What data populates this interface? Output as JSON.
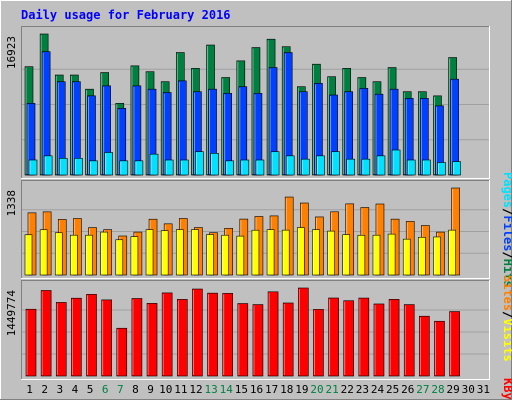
{
  "title": "Daily usage for February 2016",
  "colors": {
    "hits": "#008040",
    "files": "#0040FF",
    "pages": "#00E0FF",
    "visits": "#FFFF00",
    "sites": "#FF8000",
    "kbytes": "#FF0000",
    "weekend_label": "#008040",
    "title": "#0000FF",
    "background": "#C0C0C0"
  },
  "chart_data": [
    {
      "type": "bar",
      "name": "hits-files-pages",
      "categories": [
        "1",
        "2",
        "3",
        "4",
        "5",
        "6",
        "7",
        "8",
        "9",
        "10",
        "11",
        "12",
        "13",
        "14",
        "15",
        "16",
        "17",
        "18",
        "19",
        "20",
        "21",
        "22",
        "23",
        "24",
        "25",
        "26",
        "27",
        "28",
        "29",
        "30",
        "31"
      ],
      "weekend_days": [
        "6",
        "7",
        "13",
        "14",
        "20",
        "21",
        "27",
        "28"
      ],
      "ymax_label": "16923",
      "ylim": [
        0,
        16923
      ],
      "series": [
        {
          "name": "Hits",
          "values": [
            13000,
            16923,
            12000,
            12000,
            10300,
            12300,
            8600,
            13100,
            12400,
            11200,
            14700,
            12800,
            15600,
            11700,
            13700,
            15300,
            16300,
            15400,
            10600,
            13300,
            11800,
            12800,
            11700,
            11200,
            12900,
            10000,
            10000,
            9500,
            14100,
            0,
            0
          ]
        },
        {
          "name": "Files",
          "values": [
            8600,
            14800,
            11200,
            11200,
            9500,
            10700,
            8000,
            10700,
            10300,
            9900,
            11300,
            10000,
            10300,
            9800,
            10600,
            9800,
            12900,
            14700,
            10000,
            11000,
            9600,
            10000,
            10400,
            9700,
            10300,
            9200,
            9200,
            8300,
            11500,
            0,
            0
          ]
        },
        {
          "name": "Pages",
          "values": [
            1800,
            2300,
            2000,
            2000,
            1700,
            2700,
            1700,
            1700,
            2500,
            1800,
            1800,
            2800,
            2600,
            1700,
            1800,
            1800,
            2800,
            2300,
            1900,
            2300,
            2800,
            1900,
            1900,
            2300,
            3000,
            1800,
            1800,
            1500,
            1600,
            0,
            0
          ]
        }
      ]
    },
    {
      "type": "bar",
      "name": "sites-visits",
      "categories": [
        "1",
        "2",
        "3",
        "4",
        "5",
        "6",
        "7",
        "8",
        "9",
        "10",
        "11",
        "12",
        "13",
        "14",
        "15",
        "16",
        "17",
        "18",
        "19",
        "20",
        "21",
        "22",
        "23",
        "24",
        "25",
        "26",
        "27",
        "28",
        "29",
        "30",
        "31"
      ],
      "ymax_label": "1338",
      "ylim": [
        0,
        1338
      ],
      "series": [
        {
          "name": "Sites",
          "values": [
            956,
            971,
            855,
            869,
            729,
            698,
            600,
            660,
            858,
            787,
            869,
            730,
            651,
            718,
            860,
            900,
            909,
            1199,
            1107,
            893,
            972,
            1094,
            1038,
            1092,
            859,
            824,
            761,
            660,
            1338,
            0,
            0
          ]
        },
        {
          "name": "Visits",
          "values": [
            619,
            696,
            650,
            612,
            612,
            660,
            542,
            589,
            697,
            682,
            698,
            698,
            622,
            612,
            598,
            689,
            697,
            690,
            729,
            697,
            675,
            621,
            611,
            612,
            629,
            551,
            580,
            585,
            690,
            0,
            0
          ]
        }
      ]
    },
    {
      "type": "bar",
      "name": "kbytes",
      "categories": [
        "1",
        "2",
        "3",
        "4",
        "5",
        "6",
        "7",
        "8",
        "9",
        "10",
        "11",
        "12",
        "13",
        "14",
        "15",
        "16",
        "17",
        "18",
        "19",
        "20",
        "21",
        "22",
        "23",
        "24",
        "25",
        "26",
        "27",
        "28",
        "29",
        "30",
        "31"
      ],
      "ymax_label": "1449774",
      "ylim": [
        0,
        1449774
      ],
      "series": [
        {
          "name": "KBytes",
          "values": [
            1100000,
            1409000,
            1212000,
            1282000,
            1345000,
            1254000,
            787000,
            1277000,
            1197000,
            1369000,
            1262000,
            1433000,
            1365000,
            1361000,
            1194000,
            1177000,
            1387000,
            1203000,
            1449774,
            1097000,
            1285000,
            1240000,
            1284000,
            1187000,
            1263000,
            1177000,
            985000,
            902000,
            1062000,
            0,
            0
          ]
        }
      ]
    }
  ],
  "legend_top": {
    "pages": "Pages",
    "files": "Files",
    "hits": "Hits",
    "sep": "/"
  },
  "legend_mid": {
    "sites": "Sites",
    "visits": "Visits",
    "sep": "/"
  },
  "legend_bot": {
    "kbytes": "KBytes"
  }
}
